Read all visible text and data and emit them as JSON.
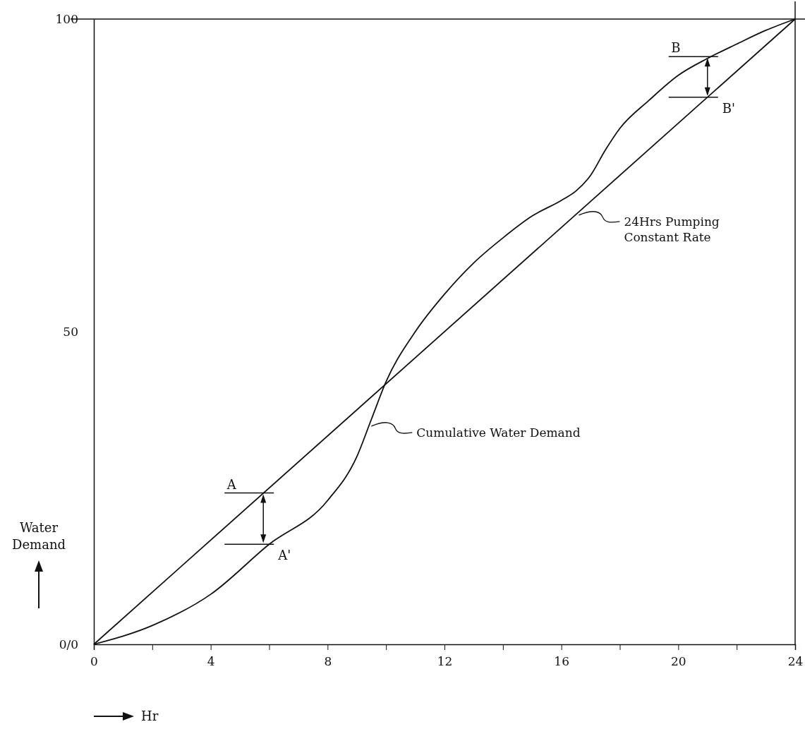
{
  "chart_data": {
    "type": "line",
    "xlabel": "Hr",
    "ylabel": "Water Demand",
    "xlim": [
      0,
      24
    ],
    "ylim": [
      0,
      100
    ],
    "xticks": [
      0,
      {
        "value": 2,
        "label": null
      },
      4,
      {
        "value": 6,
        "label": null
      },
      8,
      {
        "value": 10,
        "label": null
      },
      12,
      {
        "value": 14,
        "label": null
      },
      16,
      {
        "value": 18,
        "label": null
      },
      20,
      {
        "value": 22,
        "label": null
      },
      24
    ],
    "yticks": [
      {
        "value": 0,
        "label": "0/0"
      },
      50,
      100
    ],
    "grid": false,
    "marker": "none",
    "line_style": "solid",
    "series": [
      {
        "color": "#111111",
        "x": [
          0,
          24
        ],
        "values": [
          0,
          100
        ]
      },
      {
        "color": "#111111",
        "x": [
          0,
          2,
          4,
          6,
          8,
          9,
          9.5,
          10,
          11,
          12,
          13,
          14,
          15,
          16,
          16.5,
          17,
          17.5,
          18,
          19,
          20,
          21,
          22,
          23,
          24
        ],
        "values": [
          0,
          3,
          8,
          16,
          23,
          30,
          36,
          42,
          50,
          56,
          61,
          65,
          68.5,
          71,
          72.5,
          75,
          79,
          82.5,
          87,
          91,
          93.7,
          96,
          98.2,
          100
        ]
      }
    ],
    "annotations": [
      {
        "text": "A",
        "x": 5.8,
        "y": 24.2
      },
      {
        "text": "A'",
        "x": 5.8,
        "y": 16
      },
      {
        "text": "B",
        "x": 21,
        "y": 94
      },
      {
        "text": "B'",
        "x": 21,
        "y": 87.5
      },
      {
        "text": "Cumulative Water Demand",
        "x": 9.4,
        "y": 35
      },
      {
        "text": "24Hrs Pumping\nConstant Rate",
        "x": 16.5,
        "y": 68.75
      }
    ]
  }
}
